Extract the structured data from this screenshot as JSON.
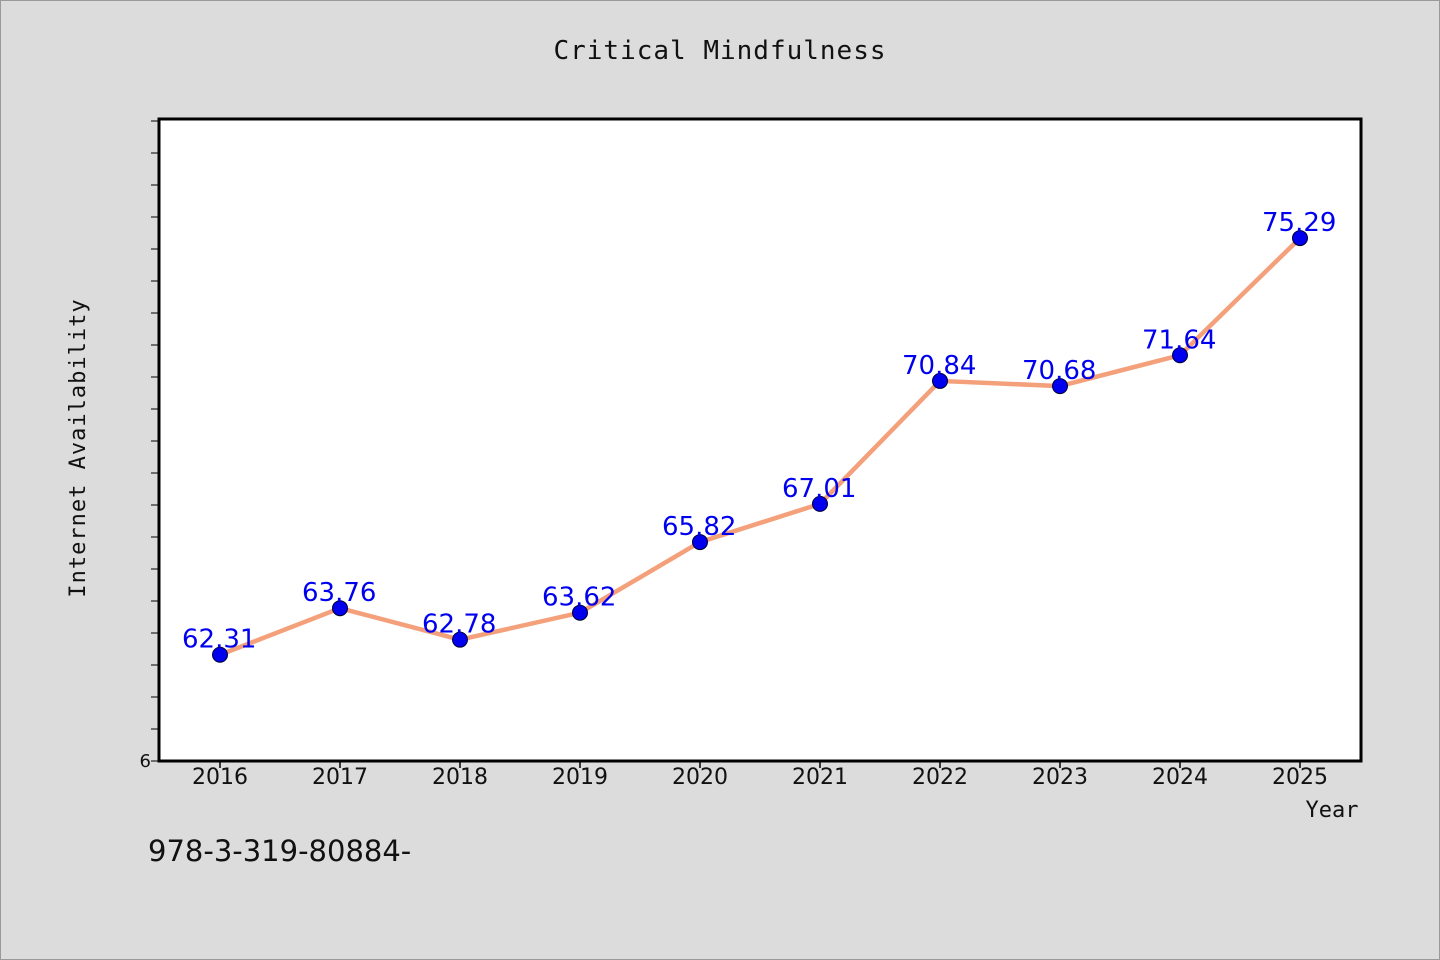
{
  "chart_data": {
    "type": "line",
    "title": "Critical Mindfulness",
    "xlabel": "Year",
    "ylabel": "Internet Availability",
    "x": [
      "2016",
      "2017",
      "2018",
      "2019",
      "2020",
      "2021",
      "2022",
      "2023",
      "2024",
      "2025"
    ],
    "series": [
      {
        "values": [
          62.31,
          63.76,
          62.78,
          63.62,
          65.82,
          67.01,
          70.84,
          70.68,
          71.64,
          75.29
        ],
        "data_labels": [
          "62.31",
          "63.76",
          "62.78",
          "63.62",
          "65.82",
          "67.01",
          "70.84",
          "70.68",
          "71.64",
          "75.29"
        ]
      }
    ],
    "y_tick_labels": [
      "6"
    ],
    "ylim": [
      59,
      79
    ],
    "grid": false,
    "legend": "none",
    "colors": {
      "line": "#f4a07a",
      "marker": "#0000ee",
      "data_label": "#0000ee",
      "plot_background": "#ffffff",
      "page_background": "#dcdcdc"
    }
  },
  "footer": {
    "code": "978-3-319-80884-"
  }
}
